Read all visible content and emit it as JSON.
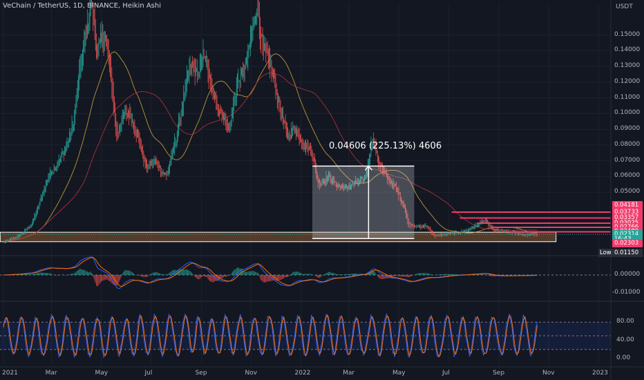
{
  "header": {
    "title": "VeChain / TetherUS, 1D, BINANCE, Heikin Ashi",
    "currency": "USDT"
  },
  "colors": {
    "background": "#131722",
    "bull": "#26a69a",
    "bear": "#ef5350",
    "ma_fast": "#c8a13a",
    "ma_slow": "#b2323a",
    "macd": "#2962ff",
    "signal": "#ff6d00",
    "stoch_k": "#2962ff",
    "stoch_d": "#ff6d00",
    "support_zone": "#6b4a2e",
    "resistance_lines": "#f23b6b",
    "measure_box": "#ffffff"
  },
  "chart_data": [
    {
      "type": "candlestick",
      "name": "price",
      "ylim": [
        0.0105,
        0.17
      ],
      "y_ticks": [
        0.15,
        0.14,
        0.13,
        0.12,
        0.11,
        0.1,
        0.09,
        0.08,
        0.07,
        0.06,
        0.05
      ],
      "y_tick_labels": [
        "0.15000",
        "0.14000",
        "0.13000",
        "0.12000",
        "0.11000",
        "0.10000",
        "0.09000",
        "0.08000",
        "0.07000",
        "0.06000",
        "0.05000"
      ],
      "x_tick_labels": [
        "2021",
        "Mar",
        "May",
        "Jul",
        "Sep",
        "Nov",
        "2022",
        "Mar",
        "May",
        "Jul",
        "Sep",
        "Nov",
        "2023"
      ],
      "x_tick_dates": [
        "2021-01-01",
        "2021-03-01",
        "2021-05-01",
        "2021-07-01",
        "2021-09-01",
        "2021-11-01",
        "2022-01-01",
        "2022-03-01",
        "2022-05-01",
        "2022-07-01",
        "2022-09-01",
        "2022-11-01",
        "2023-01-01"
      ],
      "trend_anchors": [
        [
          "2021-01-01",
          0.018
        ],
        [
          "2021-01-20",
          0.022
        ],
        [
          "2021-02-05",
          0.03
        ],
        [
          "2021-02-15",
          0.045
        ],
        [
          "2021-02-25",
          0.06
        ],
        [
          "2021-03-10",
          0.07
        ],
        [
          "2021-03-20",
          0.08
        ],
        [
          "2021-03-28",
          0.095
        ],
        [
          "2021-04-05",
          0.13
        ],
        [
          "2021-04-12",
          0.15
        ],
        [
          "2021-04-18",
          0.175
        ],
        [
          "2021-04-25",
          0.14
        ],
        [
          "2021-05-05",
          0.15
        ],
        [
          "2021-05-12",
          0.125
        ],
        [
          "2021-05-20",
          0.085
        ],
        [
          "2021-05-28",
          0.1
        ],
        [
          "2021-06-05",
          0.1
        ],
        [
          "2021-06-15",
          0.085
        ],
        [
          "2021-06-25",
          0.065
        ],
        [
          "2021-07-05",
          0.07
        ],
        [
          "2021-07-20",
          0.06
        ],
        [
          "2021-08-01",
          0.085
        ],
        [
          "2021-08-10",
          0.11
        ],
        [
          "2021-08-18",
          0.13
        ],
        [
          "2021-08-28",
          0.125
        ],
        [
          "2021-09-05",
          0.14
        ],
        [
          "2021-09-12",
          0.115
        ],
        [
          "2021-09-25",
          0.1
        ],
        [
          "2021-10-05",
          0.09
        ],
        [
          "2021-10-15",
          0.12
        ],
        [
          "2021-10-25",
          0.13
        ],
        [
          "2021-11-01",
          0.15
        ],
        [
          "2021-11-08",
          0.17
        ],
        [
          "2021-11-15",
          0.14
        ],
        [
          "2021-11-25",
          0.13
        ],
        [
          "2021-12-05",
          0.105
        ],
        [
          "2021-12-15",
          0.085
        ],
        [
          "2021-12-25",
          0.09
        ],
        [
          "2022-01-05",
          0.08
        ],
        [
          "2022-01-15",
          0.075
        ],
        [
          "2022-01-22",
          0.055
        ],
        [
          "2022-02-05",
          0.06
        ],
        [
          "2022-02-12",
          0.055
        ],
        [
          "2022-02-24",
          0.052
        ],
        [
          "2022-03-05",
          0.055
        ],
        [
          "2022-03-20",
          0.058
        ],
        [
          "2022-03-30",
          0.085
        ],
        [
          "2022-04-05",
          0.07
        ],
        [
          "2022-04-15",
          0.06
        ],
        [
          "2022-04-28",
          0.052
        ],
        [
          "2022-05-08",
          0.04
        ],
        [
          "2022-05-12",
          0.03
        ],
        [
          "2022-05-25",
          0.028
        ],
        [
          "2022-06-05",
          0.028
        ],
        [
          "2022-06-14",
          0.022
        ],
        [
          "2022-06-25",
          0.023
        ],
        [
          "2022-07-10",
          0.024
        ],
        [
          "2022-07-25",
          0.026
        ],
        [
          "2022-08-08",
          0.03
        ],
        [
          "2022-08-14",
          0.032
        ],
        [
          "2022-08-25",
          0.026
        ],
        [
          "2022-09-05",
          0.025
        ],
        [
          "2022-09-20",
          0.024
        ],
        [
          "2022-10-05",
          0.023
        ],
        [
          "2022-10-18",
          0.0231
        ]
      ],
      "support_zone": {
        "from": 0.0185,
        "to": 0.0245,
        "x_start": "2020-12-28",
        "x_end": "2022-11-10"
      },
      "resistance_lines": [
        {
          "y": 0.03733,
          "x_start": "2022-07-05"
        },
        {
          "y": 0.03357,
          "x_start": "2022-07-15"
        },
        {
          "y": 0.03025,
          "x_start": "2022-08-05"
        },
        {
          "y": 0.02766,
          "x_start": "2022-08-25"
        },
        {
          "y": 0.0248,
          "x_start": "2022-09-15"
        }
      ],
      "price_labels": [
        {
          "text": "0.04181",
          "y": 0.04181,
          "color": "#f23b6b"
        },
        {
          "text": "0.03733",
          "y": 0.03733,
          "color": "#f23b6b"
        },
        {
          "text": "0.03357",
          "y": 0.03357,
          "color": "#f23b6b"
        },
        {
          "text": "0.03025",
          "y": 0.03025,
          "color": "#f23b6b"
        },
        {
          "text": "0.02766",
          "y": 0.02766,
          "color": "#f23b6b"
        },
        {
          "text": "0.02480",
          "y": 0.0248,
          "color": "#f23b6b"
        },
        {
          "text": "0.02314",
          "y": 0.02314,
          "color": "#26a69a"
        },
        {
          "text": "16:43",
          "y": 0.02025,
          "color": "#26a69a"
        },
        {
          "text": "0.02303",
          "y": 0.0175,
          "color": "#f23b6b"
        },
        {
          "text": "0.01150",
          "y": 0.0115,
          "color": "#2a2e39"
        }
      ],
      "low_label": "Low",
      "measurement": {
        "label": "0.04606 (225.13%) 4606",
        "x_start": "2022-01-15",
        "x_end": "2022-05-20",
        "x_arrow": "2022-03-25",
        "y_low": 0.0205,
        "y_high": 0.0666
      }
    },
    {
      "type": "histogram",
      "name": "MACD",
      "y_ticks": [
        0.0,
        -0.01
      ],
      "y_tick_labels": [
        "0.00000",
        "-0.01000"
      ]
    },
    {
      "type": "line",
      "name": "Stochastic RSI",
      "ylim": [
        0,
        100
      ],
      "band": [
        20,
        80
      ],
      "y_ticks": [
        80,
        40,
        0
      ],
      "y_tick_labels": [
        "80.00",
        "40.00",
        "0.00"
      ]
    }
  ]
}
